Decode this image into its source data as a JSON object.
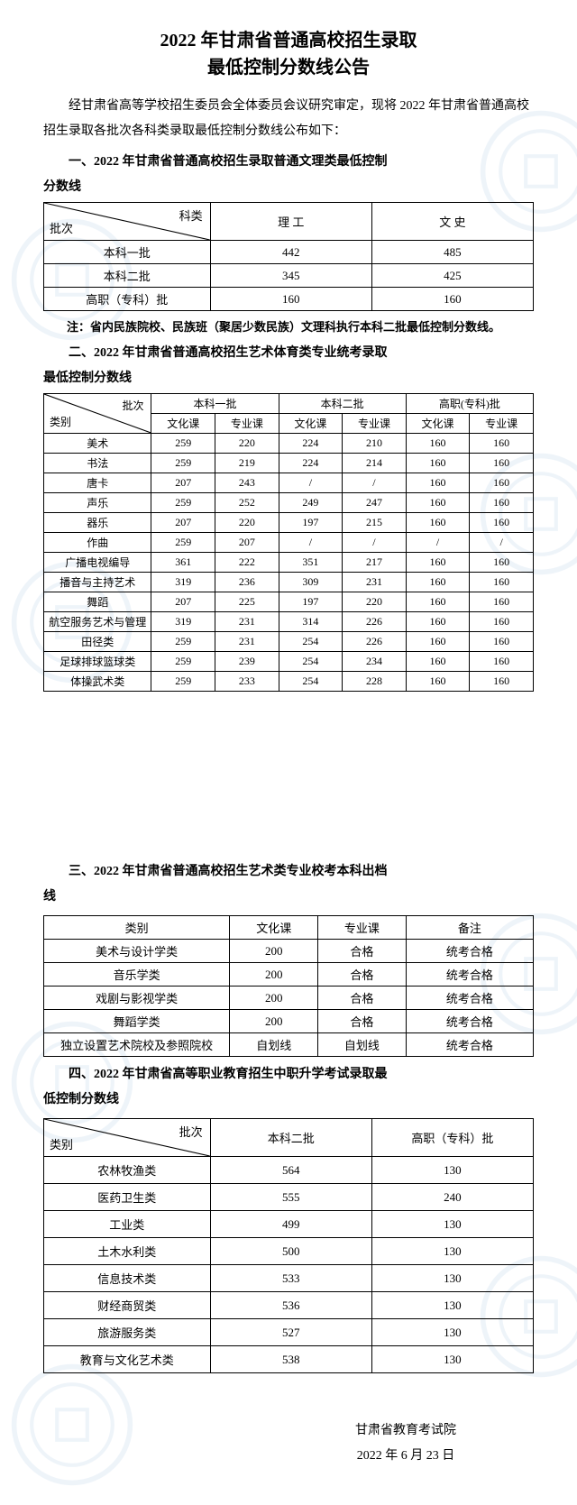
{
  "title_line1": "2022 年甘肃省普通高校招生录取",
  "title_line2": "最低控制分数线公告",
  "intro": "经甘肃省高等学校招生委员会全体委员会议研究审定，现将 2022 年甘肃省普通高校招生录取各批次各科类录取最低控制分数线公布如下：",
  "section1": {
    "head": "一、2022 年甘肃省普通高校招生录取普通文理类最低控制",
    "cont": "分数线",
    "diag_col": "科类",
    "diag_row": "批次",
    "cols": [
      "理 工",
      "文 史"
    ],
    "rows": [
      {
        "label": "本科一批",
        "v": [
          "442",
          "485"
        ]
      },
      {
        "label": "本科二批",
        "v": [
          "345",
          "425"
        ]
      },
      {
        "label": "高职（专科）批",
        "v": [
          "160",
          "160"
        ]
      }
    ],
    "note": "注：省内民族院校、民族班（聚居少数民族）文理科执行本科二批最低控制分数线。"
  },
  "section2": {
    "head": "二、2022 年甘肃省普通高校招生艺术体育类专业统考录取",
    "cont": "最低控制分数线",
    "diag_col": "批次",
    "diag_row": "类别",
    "groups": [
      "本科一批",
      "本科二批",
      "高职(专科)批"
    ],
    "subcols": [
      "文化课",
      "专业课"
    ],
    "rows": [
      {
        "label": "美术",
        "v": [
          "259",
          "220",
          "224",
          "210",
          "160",
          "160"
        ]
      },
      {
        "label": "书法",
        "v": [
          "259",
          "219",
          "224",
          "214",
          "160",
          "160"
        ]
      },
      {
        "label": "唐卡",
        "v": [
          "207",
          "243",
          "/",
          "/",
          "160",
          "160"
        ]
      },
      {
        "label": "声乐",
        "v": [
          "259",
          "252",
          "249",
          "247",
          "160",
          "160"
        ]
      },
      {
        "label": "器乐",
        "v": [
          "207",
          "220",
          "197",
          "215",
          "160",
          "160"
        ]
      },
      {
        "label": "作曲",
        "v": [
          "259",
          "207",
          "/",
          "/",
          "/",
          "/"
        ]
      },
      {
        "label": "广播电视编导",
        "v": [
          "361",
          "222",
          "351",
          "217",
          "160",
          "160"
        ]
      },
      {
        "label": "播音与主持艺术",
        "v": [
          "319",
          "236",
          "309",
          "231",
          "160",
          "160"
        ]
      },
      {
        "label": "舞蹈",
        "v": [
          "207",
          "225",
          "197",
          "220",
          "160",
          "160"
        ]
      },
      {
        "label": "航空服务艺术与管理",
        "v": [
          "319",
          "231",
          "314",
          "226",
          "160",
          "160"
        ]
      },
      {
        "label": "田径类",
        "v": [
          "259",
          "231",
          "254",
          "226",
          "160",
          "160"
        ]
      },
      {
        "label": "足球排球篮球类",
        "v": [
          "259",
          "239",
          "254",
          "234",
          "160",
          "160"
        ]
      },
      {
        "label": "体操武术类",
        "v": [
          "259",
          "233",
          "254",
          "228",
          "160",
          "160"
        ]
      }
    ]
  },
  "section3": {
    "head": "三、2022 年甘肃省普通高校招生艺术类专业校考本科出档",
    "cont": "线",
    "cols": [
      "类别",
      "文化课",
      "专业课",
      "备注"
    ],
    "rows": [
      {
        "v": [
          "美术与设计学类",
          "200",
          "合格",
          "统考合格"
        ]
      },
      {
        "v": [
          "音乐学类",
          "200",
          "合格",
          "统考合格"
        ]
      },
      {
        "v": [
          "戏剧与影视学类",
          "200",
          "合格",
          "统考合格"
        ]
      },
      {
        "v": [
          "舞蹈学类",
          "200",
          "合格",
          "统考合格"
        ]
      },
      {
        "v": [
          "独立设置艺术院校及参照院校",
          "自划线",
          "自划线",
          "统考合格"
        ]
      }
    ]
  },
  "section4": {
    "head": "四、2022 年甘肃省高等职业教育招生中职升学考试录取最",
    "cont": "低控制分数线",
    "diag_col": "批次",
    "diag_row": "类别",
    "cols": [
      "本科二批",
      "高职（专科）批"
    ],
    "rows": [
      {
        "label": "农林牧渔类",
        "v": [
          "564",
          "130"
        ]
      },
      {
        "label": "医药卫生类",
        "v": [
          "555",
          "240"
        ]
      },
      {
        "label": "工业类",
        "v": [
          "499",
          "130"
        ]
      },
      {
        "label": "土木水利类",
        "v": [
          "500",
          "130"
        ]
      },
      {
        "label": "信息技术类",
        "v": [
          "533",
          "130"
        ]
      },
      {
        "label": "财经商贸类",
        "v": [
          "536",
          "130"
        ]
      },
      {
        "label": "旅游服务类",
        "v": [
          "527",
          "130"
        ]
      },
      {
        "label": "教育与文化艺术类",
        "v": [
          "538",
          "130"
        ]
      }
    ]
  },
  "footer": {
    "org": "甘肃省教育考试院",
    "date": "2022 年 6 月 23 日"
  },
  "watermark_color": "#3a7bbf"
}
